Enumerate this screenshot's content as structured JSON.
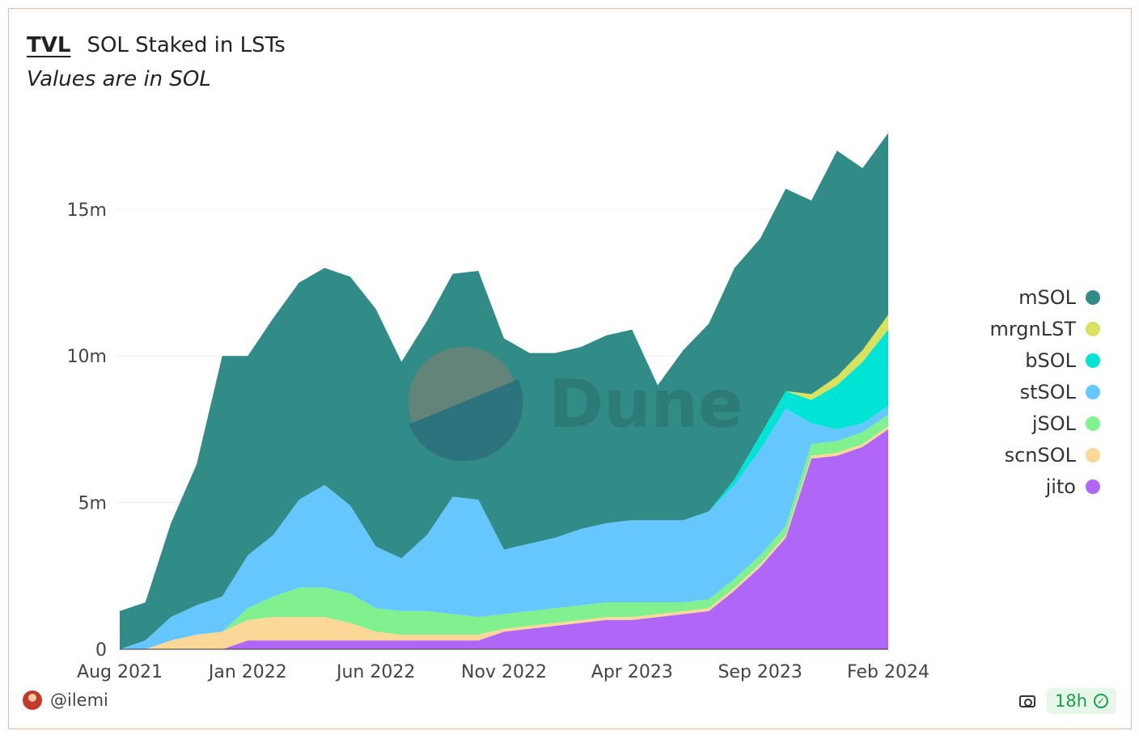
{
  "header": {
    "tab_label": "TVL",
    "title": "SOL Staked in LSTs",
    "subtitle": "Values are in SOL"
  },
  "watermark": {
    "text": "Dune"
  },
  "footer": {
    "author": "@ilemi",
    "age": "18h",
    "icons": [
      "avatar",
      "camera-icon",
      "check-icon"
    ]
  },
  "colors": {
    "mSOL": "#318c87",
    "mrgnLST": "#d8e25d",
    "bSOL": "#00e4d6",
    "stSOL": "#66c7ff",
    "jSOL": "#81f08f",
    "scnSOL": "#fbd898",
    "jito": "#b067f8"
  },
  "chart_data": {
    "type": "area",
    "stacked": true,
    "y_tick_labels": [
      "0",
      "5m",
      "10m",
      "15m"
    ],
    "y_ticks": [
      0,
      5,
      10,
      15
    ],
    "ylim": [
      0,
      18
    ],
    "x_tick_labels": [
      "Aug 2021",
      "Jan 2022",
      "Jun 2022",
      "Nov 2022",
      "Apr 2023",
      "Sep 2023",
      "Feb 2024"
    ],
    "x_ticks": [
      "2021-08",
      "2022-01",
      "2022-06",
      "2022-11",
      "2023-04",
      "2023-09",
      "2024-02"
    ],
    "xlim": [
      "2021-08",
      "2024-02"
    ],
    "grid": true,
    "legend_position": "right",
    "x": [
      "2021-08",
      "2021-09",
      "2021-10",
      "2021-11",
      "2021-12",
      "2022-01",
      "2022-02",
      "2022-03",
      "2022-04",
      "2022-05",
      "2022-06",
      "2022-07",
      "2022-08",
      "2022-09",
      "2022-10",
      "2022-11",
      "2022-12",
      "2023-01",
      "2023-02",
      "2023-03",
      "2023-04",
      "2023-05",
      "2023-06",
      "2023-07",
      "2023-08",
      "2023-09",
      "2023-10",
      "2023-11",
      "2023-12",
      "2024-01",
      "2024-02"
    ],
    "series": [
      {
        "name": "jito",
        "values": [
          0,
          0,
          0,
          0,
          0,
          0.3,
          0.3,
          0.3,
          0.3,
          0.3,
          0.3,
          0.3,
          0.3,
          0.3,
          0.3,
          0.6,
          0.7,
          0.8,
          0.9,
          1.0,
          1.0,
          1.1,
          1.2,
          1.3,
          2.0,
          2.8,
          3.8,
          6.5,
          6.6,
          6.9,
          7.5
        ]
      },
      {
        "name": "scnSOL",
        "values": [
          0,
          0,
          0.3,
          0.5,
          0.6,
          0.7,
          0.8,
          0.8,
          0.8,
          0.6,
          0.3,
          0.2,
          0.2,
          0.2,
          0.2,
          0.1,
          0.1,
          0.1,
          0.1,
          0.1,
          0.1,
          0.1,
          0.1,
          0.1,
          0.1,
          0.1,
          0.1,
          0.1,
          0.1,
          0.1,
          0.1
        ]
      },
      {
        "name": "jSOL",
        "values": [
          0,
          0,
          0,
          0,
          0,
          0.4,
          0.7,
          1.0,
          1.0,
          1.0,
          0.8,
          0.8,
          0.8,
          0.7,
          0.6,
          0.5,
          0.5,
          0.5,
          0.5,
          0.5,
          0.5,
          0.4,
          0.3,
          0.3,
          0.3,
          0.3,
          0.3,
          0.4,
          0.4,
          0.4,
          0.4
        ]
      },
      {
        "name": "stSOL",
        "values": [
          0,
          0.3,
          0.8,
          1.0,
          1.2,
          1.8,
          2.1,
          3.0,
          3.5,
          3.0,
          2.1,
          1.8,
          2.6,
          4.0,
          4.0,
          2.2,
          2.3,
          2.4,
          2.6,
          2.7,
          2.8,
          2.8,
          2.8,
          3.0,
          3.2,
          3.6,
          4.0,
          0.7,
          0.4,
          0.3,
          0.3
        ]
      },
      {
        "name": "bSOL",
        "values": [
          0,
          0,
          0,
          0,
          0,
          0,
          0,
          0,
          0,
          0,
          0,
          0,
          0,
          0,
          0,
          0,
          0,
          0,
          0,
          0,
          0,
          0,
          0,
          0,
          0.2,
          0.5,
          0.6,
          0.8,
          1.5,
          2.1,
          2.6
        ]
      },
      {
        "name": "mrgnLST",
        "values": [
          0,
          0,
          0,
          0,
          0,
          0,
          0,
          0,
          0,
          0,
          0,
          0,
          0,
          0,
          0,
          0,
          0,
          0,
          0,
          0,
          0,
          0,
          0,
          0,
          0,
          0,
          0,
          0.2,
          0.3,
          0.4,
          0.5
        ]
      },
      {
        "name": "mSOL",
        "values": [
          1.3,
          1.3,
          3.2,
          4.8,
          8.2,
          6.8,
          7.4,
          7.4,
          7.4,
          7.8,
          8.1,
          6.7,
          7.3,
          7.6,
          7.8,
          7.2,
          6.5,
          6.3,
          6.2,
          6.4,
          6.5,
          4.6,
          5.8,
          6.4,
          7.2,
          6.7,
          6.9,
          6.6,
          7.7,
          6.2,
          6.2
        ]
      }
    ]
  }
}
